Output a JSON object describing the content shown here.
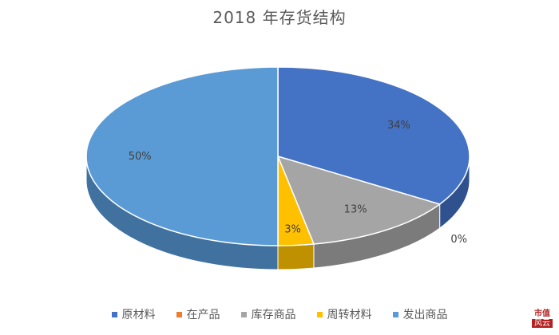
{
  "chart_data": {
    "type": "pie",
    "title": "2018 年存货结构",
    "labels": [
      "原材料",
      "在产品",
      "库存商品",
      "周转材料",
      "发出商品"
    ],
    "values": [
      34,
      0,
      13,
      3,
      50
    ],
    "value_labels": [
      "34%",
      "0%",
      "13%",
      "3%",
      "50%"
    ],
    "legend_position": "bottom"
  },
  "colors": [
    "#4472c4",
    "#ed7d31",
    "#a5a5a5",
    "#ffc000",
    "#5b9bd5"
  ],
  "side_colors": [
    "#2f528f",
    "#ae5a21",
    "#7b7b7b",
    "#bf9000",
    "#41729f"
  ],
  "logo": {
    "top": "市值",
    "bottom": "风云"
  }
}
